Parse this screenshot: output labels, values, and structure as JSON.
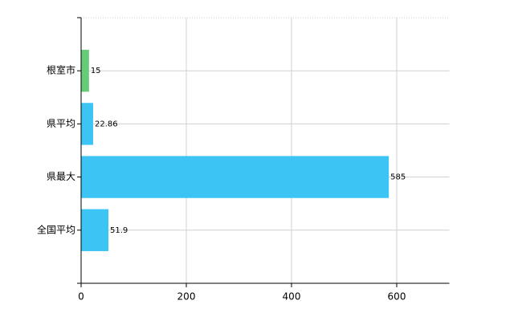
{
  "chart_data": {
    "type": "bar",
    "orientation": "horizontal",
    "categories": [
      "根室市",
      "県平均",
      "県最大",
      "全国平均"
    ],
    "values": [
      15,
      22.86,
      585,
      51.9
    ],
    "colors": [
      "#66cc77",
      "#3cc4f4",
      "#3cc4f4",
      "#3cc4f4"
    ],
    "xlim": [
      0,
      700
    ],
    "xticks": [
      0,
      200,
      400,
      600
    ],
    "grid": true
  }
}
